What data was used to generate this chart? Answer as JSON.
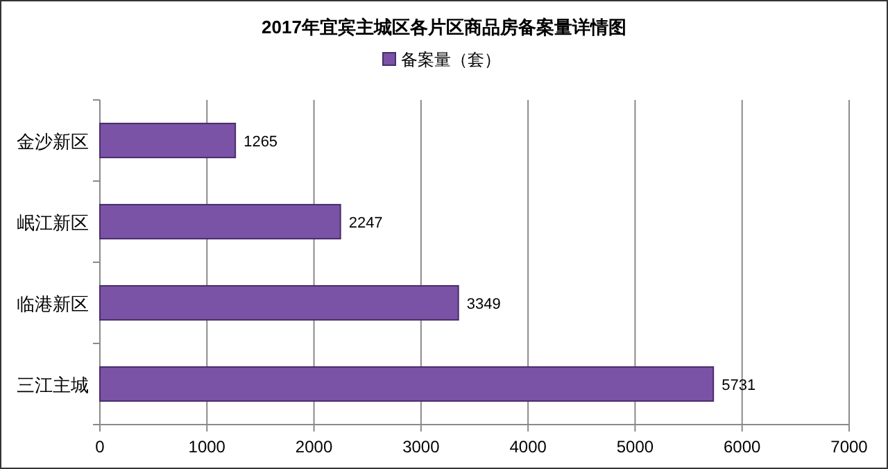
{
  "chart_data": {
    "type": "bar",
    "orientation": "horizontal",
    "title": "2017年宜宾主城区各片区商品房备案量详情图",
    "categories": [
      "金沙新区",
      "岷江新区",
      "临港新区",
      "三江主城"
    ],
    "series": [
      {
        "name": "备案量（套）",
        "color": "#7a52a6",
        "values": [
          1265,
          2247,
          3349,
          5731
        ]
      }
    ],
    "xlim": [
      0,
      7000
    ],
    "xticks": [
      0,
      1000,
      2000,
      3000,
      4000,
      5000,
      6000,
      7000
    ],
    "grid": "x",
    "legend": "top",
    "data_labels": true
  }
}
